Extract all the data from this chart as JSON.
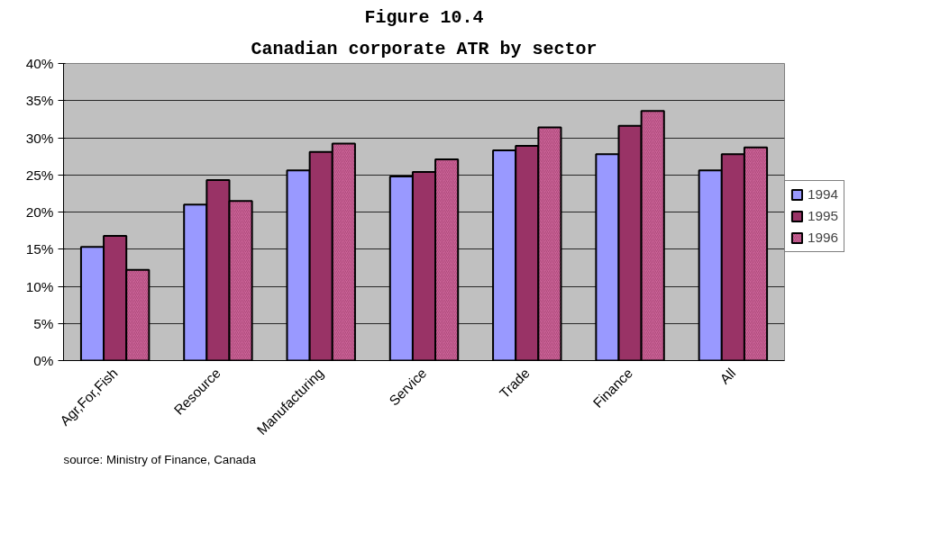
{
  "chart_data": {
    "type": "bar",
    "title": "Figure 10.4",
    "subtitle": "Canadian corporate ATR by sector",
    "categories": [
      "Agr,For,Fish",
      "Resource",
      "Manufacturing",
      "Service",
      "Trade",
      "Finance",
      "All"
    ],
    "series": [
      {
        "name": "1994",
        "color": "#9999ff",
        "values": [
          15.3,
          21.0,
          25.6,
          24.8,
          28.3,
          27.8,
          25.6
        ]
      },
      {
        "name": "1995",
        "color": "#993366",
        "values": [
          16.8,
          24.3,
          28.1,
          25.4,
          28.9,
          31.6,
          27.8
        ]
      },
      {
        "name": "1996",
        "color": "#cc6699",
        "values": [
          12.2,
          21.5,
          29.2,
          27.1,
          31.4,
          33.6,
          28.7
        ]
      }
    ],
    "ylim": [
      0,
      40
    ],
    "yticks": [
      {
        "value": 0,
        "label": "0%"
      },
      {
        "value": 5,
        "label": "5%"
      },
      {
        "value": 10,
        "label": "10%"
      },
      {
        "value": 15,
        "label": "15%"
      },
      {
        "value": 20,
        "label": "20%"
      },
      {
        "value": 25,
        "label": "25%"
      },
      {
        "value": 30,
        "label": "30%"
      },
      {
        "value": 35,
        "label": "35%"
      },
      {
        "value": 40,
        "label": "40%"
      }
    ],
    "grid": "y",
    "legend": "right",
    "annotations": [
      "source: Ministry of Finance, Canada"
    ]
  }
}
